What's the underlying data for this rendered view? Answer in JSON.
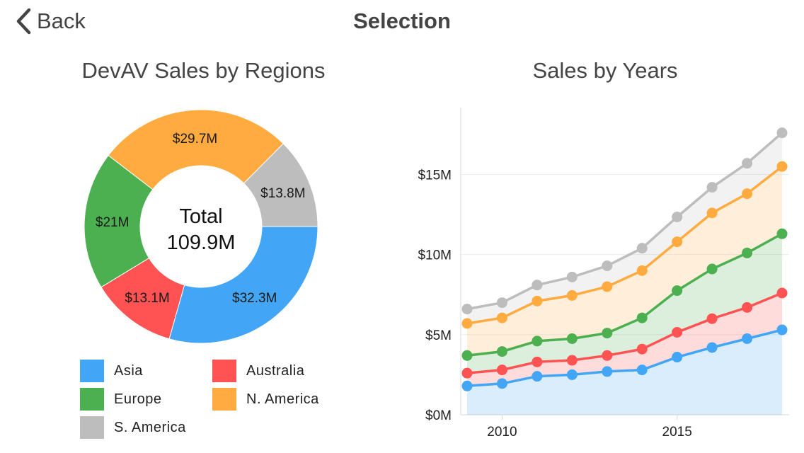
{
  "nav": {
    "back_label": "Back",
    "title": "Selection"
  },
  "colors": {
    "Asia": "#42a5f5",
    "Australia": "#ff5252",
    "Europe": "#4caf50",
    "N. America": "#ffab40",
    "S. America": "#bdbdbd"
  },
  "chart_data": [
    {
      "type": "pie",
      "title": "DevAV Sales by Regions",
      "center_label": [
        "Total",
        "109.9M"
      ],
      "slices": [
        {
          "name": "Asia",
          "value": 32.3,
          "label": "$32.3M"
        },
        {
          "name": "Australia",
          "value": 13.1,
          "label": "$13.1M"
        },
        {
          "name": "Europe",
          "value": 21,
          "label": "$21M"
        },
        {
          "name": "N. America",
          "value": 29.7,
          "label": "$29.7M"
        },
        {
          "name": "S. America",
          "value": 13.8,
          "label": "$13.8M"
        }
      ],
      "legend": [
        "Asia",
        "Australia",
        "Europe",
        "N. America",
        "S. America"
      ],
      "legend_position": "bottom"
    },
    {
      "type": "area",
      "stacked": true,
      "title": "Sales by Years",
      "x": [
        2009,
        2010,
        2011,
        2012,
        2013,
        2014,
        2015,
        2016,
        2017,
        2018
      ],
      "x_ticks": [
        2010,
        2015
      ],
      "y_ticks": [
        "$0M",
        "$5M",
        "$10M",
        "$15M"
      ],
      "y_tick_values": [
        0,
        5,
        10,
        15
      ],
      "ylim": [
        0,
        19
      ],
      "grid": true,
      "series": [
        {
          "name": "Asia",
          "values": [
            1.8,
            1.95,
            2.4,
            2.5,
            2.7,
            2.8,
            3.6,
            4.2,
            4.75,
            5.3
          ]
        },
        {
          "name": "Australia",
          "values": [
            0.8,
            0.85,
            0.9,
            0.9,
            1.0,
            1.3,
            1.55,
            1.8,
            1.95,
            2.3
          ]
        },
        {
          "name": "Europe",
          "values": [
            1.1,
            1.15,
            1.3,
            1.35,
            1.4,
            1.95,
            2.6,
            3.1,
            3.4,
            3.7
          ]
        },
        {
          "name": "N. America",
          "values": [
            2.0,
            2.1,
            2.5,
            2.7,
            2.9,
            2.95,
            3.05,
            3.5,
            3.7,
            4.2
          ]
        },
        {
          "name": "S. America",
          "values": [
            0.9,
            0.95,
            1.0,
            1.15,
            1.3,
            1.4,
            1.55,
            1.6,
            1.9,
            2.1
          ]
        }
      ]
    }
  ]
}
